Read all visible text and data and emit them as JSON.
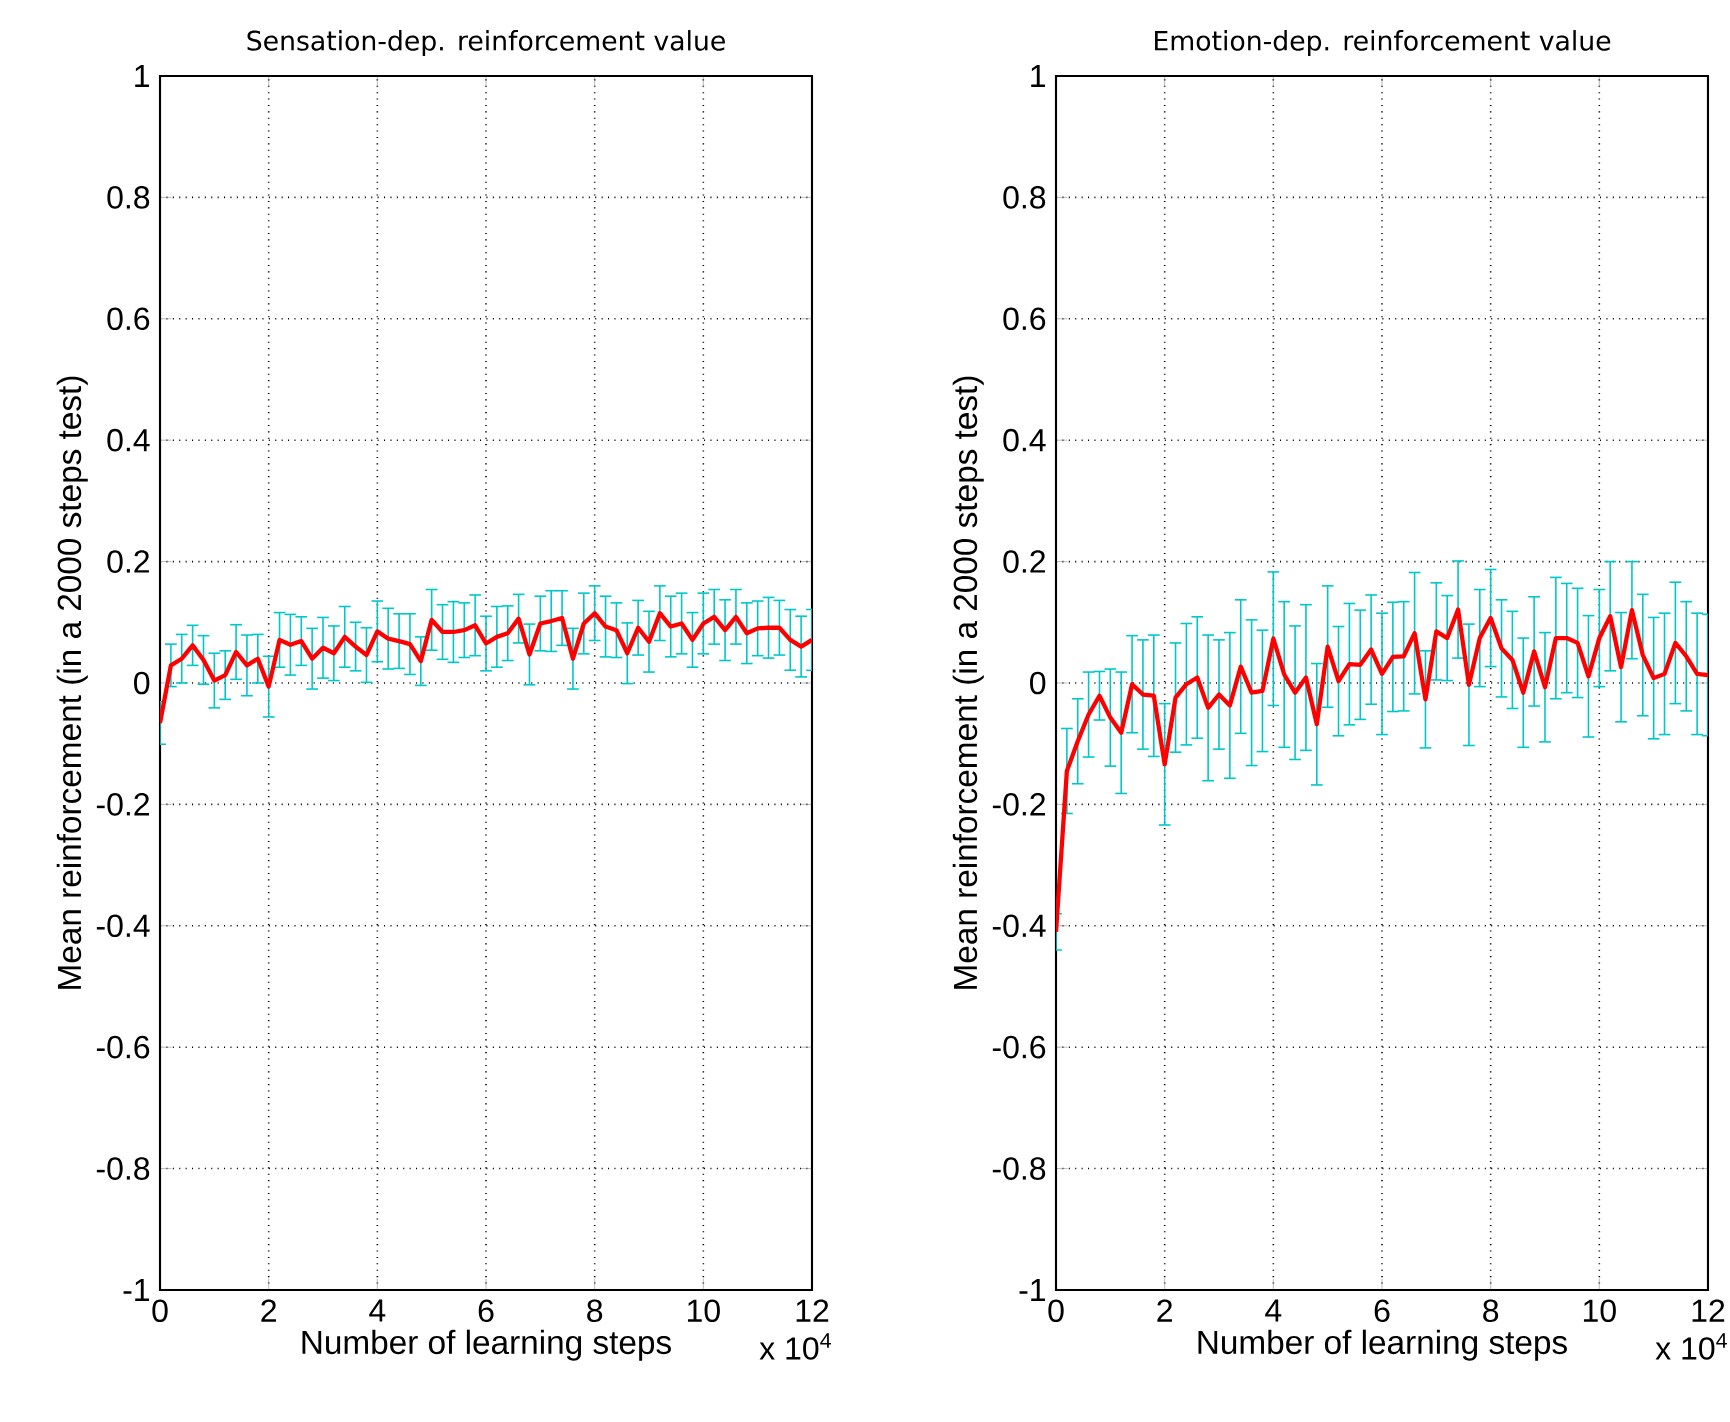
{
  "chart_data": [
    {
      "type": "line",
      "title": "Sensation-dep. reinforcement value",
      "xlabel": "Number of learning steps",
      "ylabel": "Mean reinforcement (in a 2000 steps test)",
      "annotations": [
        "x 10$^{4}$"
      ],
      "x": [
        0,
        0.2,
        0.4,
        0.6,
        0.8,
        1,
        1.2,
        1.4,
        1.6,
        1.8,
        2,
        2.2,
        2.4,
        2.6,
        2.8,
        3,
        3.2,
        3.4,
        3.6,
        3.8,
        4,
        4.2,
        4.4,
        4.6,
        4.8,
        5,
        5.2,
        5.4,
        5.6,
        5.8,
        6,
        6.2,
        6.4,
        6.6,
        6.8,
        7,
        7.2,
        7.4,
        7.6,
        7.8,
        8,
        8.2,
        8.4,
        8.6,
        8.8,
        9,
        9.2,
        9.4,
        9.6,
        9.8,
        10,
        10.2,
        10.4,
        10.6,
        10.8,
        11,
        11.2,
        11.4,
        11.6,
        11.8,
        12
      ],
      "series": [
        {
          "color": "#ff0000",
          "values": [
            -0.066,
            0.029,
            0.04,
            0.062,
            0.038,
            0.004,
            0.013,
            0.051,
            0.029,
            0.04,
            -0.006,
            0.071,
            0.063,
            0.069,
            0.04,
            0.058,
            0.049,
            0.076,
            0.06,
            0.046,
            0.085,
            0.073,
            0.069,
            0.064,
            0.036,
            0.104,
            0.084,
            0.084,
            0.087,
            0.095,
            0.065,
            0.076,
            0.082,
            0.106,
            0.047,
            0.098,
            0.102,
            0.107,
            0.04,
            0.098,
            0.115,
            0.093,
            0.087,
            0.049,
            0.091,
            0.068,
            0.115,
            0.093,
            0.098,
            0.071,
            0.098,
            0.109,
            0.087,
            0.109,
            0.082,
            0.09,
            0.091,
            0.091,
            0.071,
            0.06,
            0.071
          ],
          "errors": [
            0.035,
            0.035,
            0.04,
            0.033,
            0.04,
            0.045,
            0.04,
            0.045,
            0.05,
            0.04,
            0.05,
            0.045,
            0.05,
            0.04,
            0.05,
            0.05,
            0.045,
            0.05,
            0.04,
            0.045,
            0.05,
            0.05,
            0.045,
            0.05,
            0.04,
            0.05,
            0.045,
            0.05,
            0.045,
            0.05,
            0.045,
            0.05,
            0.045,
            0.04,
            0.05,
            0.045,
            0.05,
            0.045,
            0.05,
            0.05,
            0.045,
            0.05,
            0.045,
            0.05,
            0.045,
            0.05,
            0.045,
            0.05,
            0.05,
            0.045,
            0.05,
            0.045,
            0.05,
            0.045,
            0.05,
            0.045,
            0.05,
            0.045,
            0.05,
            0.05,
            0.05
          ]
        }
      ],
      "xlim": [
        0,
        12
      ],
      "ylim": [
        -1,
        1
      ],
      "xticks": [
        0,
        2,
        4,
        6,
        8,
        10,
        12
      ],
      "yticks": [
        -1,
        -0.8,
        -0.6,
        -0.4,
        -0.2,
        0,
        0.2,
        0.4,
        0.6,
        0.8,
        1
      ],
      "grid": true,
      "marker": "none",
      "line_style": "solid"
    },
    {
      "type": "line",
      "title": "Emotion-dep. reinforcement value",
      "xlabel": "Number of learning steps",
      "ylabel": "Mean reinforcement (in a 2000 steps test)",
      "annotations": [
        "x 10$^{4}$"
      ],
      "x": [
        0,
        0.2,
        0.4,
        0.6,
        0.8,
        1,
        1.2,
        1.4,
        1.6,
        1.8,
        2,
        2.2,
        2.4,
        2.6,
        2.8,
        3,
        3.2,
        3.4,
        3.6,
        3.8,
        4,
        4.2,
        4.4,
        4.6,
        4.8,
        5,
        5.2,
        5.4,
        5.6,
        5.8,
        6,
        6.2,
        6.4,
        6.6,
        6.8,
        7,
        7.2,
        7.4,
        7.6,
        7.8,
        8,
        8.2,
        8.4,
        8.6,
        8.8,
        9,
        9.2,
        9.4,
        9.6,
        9.8,
        10,
        10.2,
        10.4,
        10.6,
        10.8,
        11,
        11.2,
        11.4,
        11.6,
        11.8,
        12
      ],
      "series": [
        {
          "color": "#ff0000",
          "values": [
            -0.41,
            -0.145,
            -0.096,
            -0.052,
            -0.021,
            -0.057,
            -0.082,
            -0.002,
            -0.019,
            -0.021,
            -0.134,
            -0.024,
            -0.002,
            0.009,
            -0.041,
            -0.019,
            -0.037,
            0.027,
            -0.016,
            -0.013,
            0.073,
            0.014,
            -0.016,
            0.009,
            -0.068,
            0.06,
            0.003,
            0.031,
            0.03,
            0.055,
            0.015,
            0.043,
            0.044,
            0.082,
            -0.027,
            0.085,
            0.074,
            0.121,
            -0.003,
            0.074,
            0.107,
            0.057,
            0.038,
            -0.016,
            0.052,
            -0.007,
            0.074,
            0.074,
            0.066,
            0.011,
            0.074,
            0.11,
            0.026,
            0.12,
            0.046,
            0.008,
            0.015,
            0.066,
            0.044,
            0.015,
            0.013
          ],
          "errors": [
            0.03,
            0.07,
            0.07,
            0.07,
            0.04,
            0.08,
            0.1,
            0.08,
            0.09,
            0.1,
            0.1,
            0.09,
            0.1,
            0.1,
            0.12,
            0.09,
            0.12,
            0.11,
            0.12,
            0.1,
            0.11,
            0.12,
            0.11,
            0.12,
            0.1,
            0.1,
            0.09,
            0.1,
            0.09,
            0.09,
            0.1,
            0.09,
            0.09,
            0.1,
            0.08,
            0.08,
            0.07,
            0.08,
            0.1,
            0.08,
            0.08,
            0.08,
            0.08,
            0.09,
            0.09,
            0.09,
            0.1,
            0.09,
            0.09,
            0.1,
            0.08,
            0.09,
            0.09,
            0.08,
            0.1,
            0.1,
            0.1,
            0.1,
            0.09,
            0.1,
            0.1
          ]
        }
      ],
      "xlim": [
        0,
        12
      ],
      "ylim": [
        -1,
        1
      ],
      "xticks": [
        0,
        2,
        4,
        6,
        8,
        10,
        12
      ],
      "yticks": [
        -1,
        -0.8,
        -0.6,
        -0.4,
        -0.2,
        0,
        0.2,
        0.4,
        0.6,
        0.8,
        1
      ],
      "grid": true,
      "marker": "none",
      "line_style": "solid"
    }
  ]
}
